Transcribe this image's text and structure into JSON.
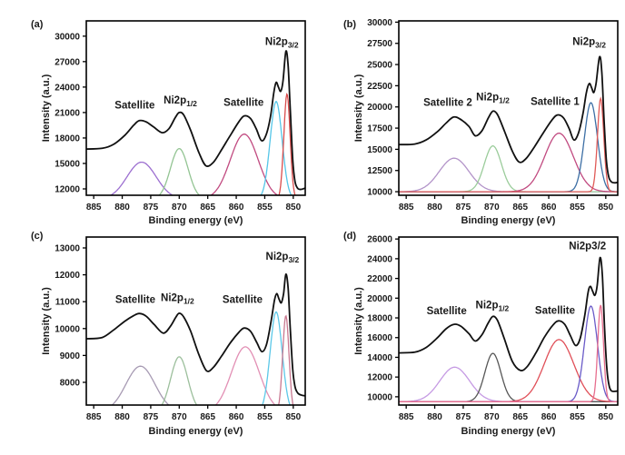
{
  "figure_title": "",
  "chart_data": [
    {
      "id": "a",
      "type": "line",
      "panel_label": "(a)",
      "xlabel": "Binding energy (eV)",
      "ylabel": "Intensity (a.u.)",
      "x_ticks": [
        885,
        880,
        875,
        870,
        865,
        860,
        855,
        850
      ],
      "y_ticks": [
        12000,
        15000,
        18000,
        21000,
        24000,
        27000,
        30000
      ],
      "x_range": [
        886.3,
        847.9
      ],
      "y_range": [
        11250,
        31800
      ],
      "x_axis_reversed": true,
      "grid": false,
      "legend": "none",
      "envelope": {
        "name": "sum-envelope",
        "color": "#111111",
        "points": [
          [
            886.3,
            16700
          ],
          [
            883.5,
            16780
          ],
          [
            881.5,
            17250
          ],
          [
            879.5,
            18350
          ],
          [
            878,
            19500
          ],
          [
            877,
            20050
          ],
          [
            875.8,
            19900
          ],
          [
            874.5,
            19300
          ],
          [
            873,
            18620
          ],
          [
            871.8,
            19100
          ],
          [
            870.7,
            20400
          ],
          [
            870,
            21000
          ],
          [
            869.2,
            20700
          ],
          [
            868,
            18900
          ],
          [
            866.5,
            16200
          ],
          [
            865.3,
            14720
          ],
          [
            864,
            15150
          ],
          [
            862.5,
            16700
          ],
          [
            861,
            18350
          ],
          [
            859.5,
            19950
          ],
          [
            858.6,
            20600
          ],
          [
            857.5,
            20300
          ],
          [
            856.5,
            19100
          ],
          [
            855.6,
            17700
          ],
          [
            854.8,
            18300
          ],
          [
            854,
            20500
          ],
          [
            853.4,
            23400
          ],
          [
            853,
            24550
          ],
          [
            852.6,
            24000
          ],
          [
            852.2,
            23500
          ],
          [
            851.8,
            24700
          ],
          [
            851.3,
            28200
          ],
          [
            850.9,
            26500
          ],
          [
            850.5,
            21000
          ],
          [
            850.1,
            15500
          ],
          [
            849.7,
            12900
          ],
          [
            849.2,
            12050
          ],
          [
            848.6,
            11950
          ],
          [
            847.9,
            12100
          ]
        ]
      },
      "components": [
        {
          "name": "satellite-high-BE",
          "color": "#9c6fd0",
          "center": 876.6,
          "peak_y": 15150,
          "sigma": 2.55,
          "base_y": 10800
        },
        {
          "name": "ni2p-1-2",
          "color": "#93c493",
          "center": 870.0,
          "peak_y": 16750,
          "sigma": 1.55,
          "base_y": 10800
        },
        {
          "name": "satellite-low-BE",
          "color": "#c14a80",
          "center": 858.6,
          "peak_y": 18450,
          "sigma": 2.45,
          "base_y": 10800
        },
        {
          "name": "ni2p-3-2-shoulder",
          "color": "#55c6e8",
          "center": 853.0,
          "peak_y": 22300,
          "sigma": 1.05,
          "base_y": 10800
        },
        {
          "name": "ni2p-3-2-main",
          "color": "#d94c4c",
          "center": 851.1,
          "peak_y": 23200,
          "sigma": 0.55,
          "base_y": 10800
        }
      ],
      "annotations": [
        {
          "text": "Satellite",
          "sub": "",
          "x": 877.8,
          "y": 21450
        },
        {
          "text": "Ni2p",
          "sub": "1/2",
          "x": 869.8,
          "y": 22050
        },
        {
          "text": "Satellite",
          "sub": "",
          "x": 858.7,
          "y": 21800
        },
        {
          "text": "Ni2p",
          "sub": "3/2",
          "x": 852.0,
          "y": 28950
        }
      ]
    },
    {
      "id": "b",
      "type": "line",
      "panel_label": "(b)",
      "xlabel": "Binding energy (eV)",
      "ylabel": "Intensity (a.u.)",
      "x_ticks": [
        885,
        880,
        875,
        870,
        865,
        860,
        855,
        850
      ],
      "y_ticks": [
        10000,
        12500,
        15000,
        17500,
        20000,
        22500,
        25000,
        27500,
        30000
      ],
      "x_range": [
        886.3,
        847.9
      ],
      "y_range": [
        9580,
        30150
      ],
      "x_axis_reversed": true,
      "grid": false,
      "legend": "none",
      "envelope": {
        "name": "sum-envelope",
        "color": "#111111",
        "points": [
          [
            886.3,
            15560
          ],
          [
            883.5,
            15620
          ],
          [
            881.5,
            16100
          ],
          [
            879.5,
            17100
          ],
          [
            878,
            18100
          ],
          [
            876.7,
            18800
          ],
          [
            875.5,
            18550
          ],
          [
            874,
            17700
          ],
          [
            872.9,
            16600
          ],
          [
            871.7,
            17200
          ],
          [
            870.6,
            18700
          ],
          [
            869.8,
            19500
          ],
          [
            869,
            19100
          ],
          [
            867.8,
            17200
          ],
          [
            866.4,
            14800
          ],
          [
            865.2,
            13500
          ],
          [
            864,
            13900
          ],
          [
            862.5,
            15300
          ],
          [
            861,
            16900
          ],
          [
            859.5,
            18400
          ],
          [
            858.5,
            19050
          ],
          [
            857.4,
            18700
          ],
          [
            856.4,
            17400
          ],
          [
            855.6,
            16100
          ],
          [
            854.8,
            16900
          ],
          [
            854,
            19200
          ],
          [
            853.4,
            21700
          ],
          [
            852.9,
            22750
          ],
          [
            852.5,
            22300
          ],
          [
            852.1,
            21700
          ],
          [
            851.7,
            22800
          ],
          [
            851.1,
            25900
          ],
          [
            850.7,
            24200
          ],
          [
            850.3,
            18500
          ],
          [
            849.9,
            13800
          ],
          [
            849.5,
            11800
          ],
          [
            849,
            11150
          ],
          [
            848.4,
            11050
          ],
          [
            847.9,
            11100
          ]
        ]
      },
      "components": [
        {
          "name": "satellite-2",
          "color": "#b394c9",
          "center": 876.6,
          "peak_y": 13950,
          "sigma": 2.6,
          "base_y": 10000
        },
        {
          "name": "ni2p-1-2",
          "color": "#9bcc9b",
          "center": 869.8,
          "peak_y": 15400,
          "sigma": 1.5,
          "base_y": 10000
        },
        {
          "name": "satellite-1",
          "color": "#c14a80",
          "center": 858.2,
          "peak_y": 16900,
          "sigma": 2.5,
          "base_y": 10000
        },
        {
          "name": "ni2p-3-2-shoulder",
          "color": "#3d6fa5",
          "center": 852.6,
          "peak_y": 20500,
          "sigma": 1.15,
          "base_y": 10000
        },
        {
          "name": "ni2p-3-2-main",
          "color": "#e05a57",
          "center": 850.9,
          "peak_y": 21000,
          "sigma": 0.55,
          "base_y": 10000
        }
      ],
      "annotations": [
        {
          "text": "Satellite 2",
          "sub": "",
          "x": 877.7,
          "y": 20150
        },
        {
          "text": "Ni2p",
          "sub": "1/2",
          "x": 869.8,
          "y": 20750
        },
        {
          "text": "Satellite 1",
          "sub": "",
          "x": 858.9,
          "y": 20250
        },
        {
          "text": "Ni2p",
          "sub": "3/2",
          "x": 852.9,
          "y": 27300
        }
      ]
    },
    {
      "id": "c",
      "type": "line",
      "panel_label": "(c)",
      "xlabel": "Binding energy (eV)",
      "ylabel": "Intensity (a.u.)",
      "x_ticks": [
        885,
        880,
        875,
        870,
        865,
        860,
        855,
        850
      ],
      "y_ticks": [
        8000,
        9000,
        10000,
        11000,
        12000,
        13000
      ],
      "x_range": [
        886.3,
        847.9
      ],
      "y_range": [
        7155,
        13405
      ],
      "x_axis_reversed": true,
      "grid": false,
      "legend": "none",
      "envelope": {
        "name": "sum-envelope",
        "color": "#111111",
        "points": [
          [
            886.3,
            9620
          ],
          [
            883.5,
            9670
          ],
          [
            881.5,
            9950
          ],
          [
            879.5,
            10280
          ],
          [
            878,
            10480
          ],
          [
            877,
            10560
          ],
          [
            875.8,
            10460
          ],
          [
            874.4,
            10150
          ],
          [
            872.8,
            9830
          ],
          [
            871.6,
            10070
          ],
          [
            870.6,
            10420
          ],
          [
            870,
            10570
          ],
          [
            869.2,
            10430
          ],
          [
            868,
            9900
          ],
          [
            866.5,
            9000
          ],
          [
            865.2,
            8430
          ],
          [
            864,
            8560
          ],
          [
            862.5,
            9000
          ],
          [
            861,
            9480
          ],
          [
            859.5,
            9870
          ],
          [
            858.6,
            10020
          ],
          [
            857.5,
            9900
          ],
          [
            856.4,
            9480
          ],
          [
            855.5,
            9140
          ],
          [
            854.7,
            9400
          ],
          [
            853.9,
            10250
          ],
          [
            853.3,
            11050
          ],
          [
            852.9,
            11300
          ],
          [
            852.5,
            11100
          ],
          [
            852.1,
            10960
          ],
          [
            851.7,
            11300
          ],
          [
            851.3,
            12020
          ],
          [
            850.9,
            11500
          ],
          [
            850.5,
            9900
          ],
          [
            850.1,
            8500
          ],
          [
            849.7,
            7850
          ],
          [
            849.2,
            7600
          ],
          [
            848.5,
            7520
          ],
          [
            847.9,
            7500
          ]
        ]
      },
      "components": [
        {
          "name": "satellite-high-BE",
          "color": "#a79ab3",
          "center": 876.8,
          "peak_y": 8600,
          "sigma": 2.55,
          "base_y": 6900
        },
        {
          "name": "ni2p-1-2",
          "color": "#9cbf9c",
          "center": 870.0,
          "peak_y": 8950,
          "sigma": 1.5,
          "base_y": 6900
        },
        {
          "name": "satellite-low-BE",
          "color": "#e28fb4",
          "center": 858.4,
          "peak_y": 9320,
          "sigma": 2.45,
          "base_y": 6900
        },
        {
          "name": "ni2p-3-2-shoulder",
          "color": "#5cc8e8",
          "center": 853.0,
          "peak_y": 10620,
          "sigma": 1.05,
          "base_y": 6900
        },
        {
          "name": "ni2p-3-2-main",
          "color": "#c87890",
          "center": 851.3,
          "peak_y": 10480,
          "sigma": 0.55,
          "base_y": 6900
        }
      ],
      "annotations": [
        {
          "text": "Satellite",
          "sub": "",
          "x": 877.7,
          "y": 10950
        },
        {
          "text": "Ni2p",
          "sub": "1/2",
          "x": 870.3,
          "y": 11020
        },
        {
          "text": "Satellite",
          "sub": "",
          "x": 858.9,
          "y": 10950
        },
        {
          "text": "Ni2p",
          "sub": "3/2",
          "x": 851.9,
          "y": 12560
        }
      ]
    },
    {
      "id": "d",
      "type": "line",
      "panel_label": "(d)",
      "xlabel": "Binding energy (eV)",
      "ylabel": "Intensity (a.u.)",
      "x_ticks": [
        885,
        880,
        875,
        870,
        865,
        860,
        855,
        850
      ],
      "y_ticks": [
        10000,
        12000,
        14000,
        16000,
        18000,
        20000,
        22000,
        24000,
        26000
      ],
      "x_range": [
        886.3,
        847.9
      ],
      "y_range": [
        9160,
        26200
      ],
      "x_axis_reversed": true,
      "grid": false,
      "legend": "none",
      "envelope": {
        "name": "sum-envelope",
        "color": "#111111",
        "points": [
          [
            886.3,
            14450
          ],
          [
            883.5,
            14520
          ],
          [
            881.5,
            15000
          ],
          [
            879.5,
            16000
          ],
          [
            878,
            16900
          ],
          [
            876.6,
            17350
          ],
          [
            875.4,
            17150
          ],
          [
            874,
            16400
          ],
          [
            872.9,
            15650
          ],
          [
            871.7,
            16300
          ],
          [
            870.6,
            17500
          ],
          [
            869.8,
            18150
          ],
          [
            869,
            17750
          ],
          [
            867.8,
            15900
          ],
          [
            866.4,
            13600
          ],
          [
            865,
            12680
          ],
          [
            863.8,
            13050
          ],
          [
            862.3,
            14400
          ],
          [
            860.8,
            16000
          ],
          [
            859.3,
            17250
          ],
          [
            858.3,
            17700
          ],
          [
            857.2,
            17350
          ],
          [
            856.2,
            16200
          ],
          [
            855.3,
            15200
          ],
          [
            854.5,
            15900
          ],
          [
            853.7,
            18200
          ],
          [
            853.1,
            20600
          ],
          [
            852.7,
            21200
          ],
          [
            852.3,
            20700
          ],
          [
            851.9,
            20300
          ],
          [
            851.5,
            21300
          ],
          [
            851,
            24100
          ],
          [
            850.6,
            22300
          ],
          [
            850.2,
            16800
          ],
          [
            849.8,
            12800
          ],
          [
            849.4,
            11100
          ],
          [
            849,
            10600
          ],
          [
            848.4,
            10550
          ],
          [
            847.9,
            10600
          ]
        ]
      },
      "components": [
        {
          "name": "satellite-high-BE",
          "color": "#c59ae3",
          "center": 876.5,
          "peak_y": 13000,
          "sigma": 2.6,
          "base_y": 9500
        },
        {
          "name": "ni2p-1-2",
          "color": "#575757",
          "center": 869.8,
          "peak_y": 14400,
          "sigma": 1.4,
          "base_y": 9500
        },
        {
          "name": "satellite-low-BE",
          "color": "#e04f58",
          "center": 858.2,
          "peak_y": 15800,
          "sigma": 2.6,
          "base_y": 9500
        },
        {
          "name": "ni2p-3-2-shoulder",
          "color": "#6a5bc8",
          "center": 852.6,
          "peak_y": 19200,
          "sigma": 1.15,
          "base_y": 9500
        },
        {
          "name": "ni2p-3-2-main",
          "color": "#e76e8e",
          "center": 850.9,
          "peak_y": 19300,
          "sigma": 0.5,
          "base_y": 9500
        }
      ],
      "annotations": [
        {
          "text": "Satellite",
          "sub": "",
          "x": 877.9,
          "y": 18350
        },
        {
          "text": "Ni2p",
          "sub": "1/2",
          "x": 869.9,
          "y": 18950
        },
        {
          "text": "Satellite",
          "sub": "",
          "x": 858.9,
          "y": 18400
        },
        {
          "text": "Ni2p3/2",
          "sub": "",
          "x": 853.2,
          "y": 24950
        }
      ]
    }
  ]
}
